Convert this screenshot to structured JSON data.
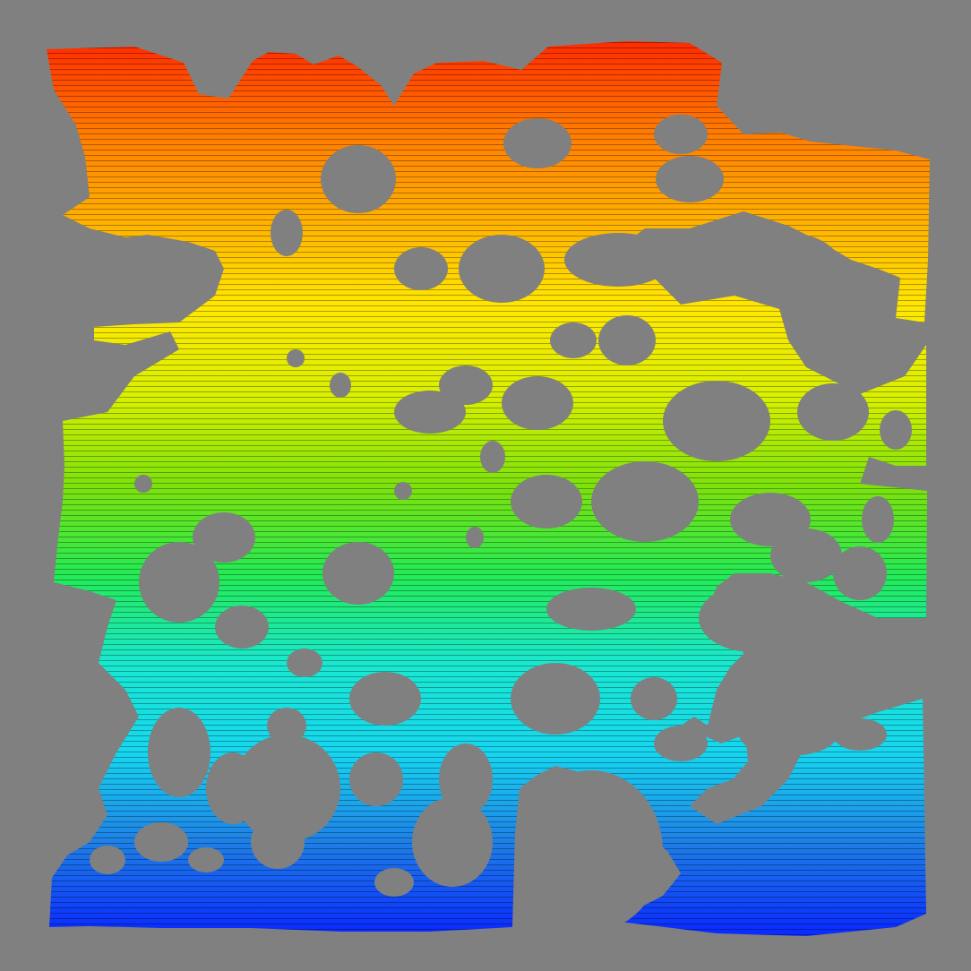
{
  "scene": {
    "background_color": "#808080",
    "colormap": [
      "#0a2cff",
      "#1e7fe6",
      "#16d6f0",
      "#19e8d0",
      "#23ea55",
      "#7ce20c",
      "#d8f000",
      "#ffe800",
      "#ffb000",
      "#ff7a00",
      "#ff2a00"
    ],
    "colormap_name": "jet",
    "object": "porous-structure-surface-render"
  }
}
